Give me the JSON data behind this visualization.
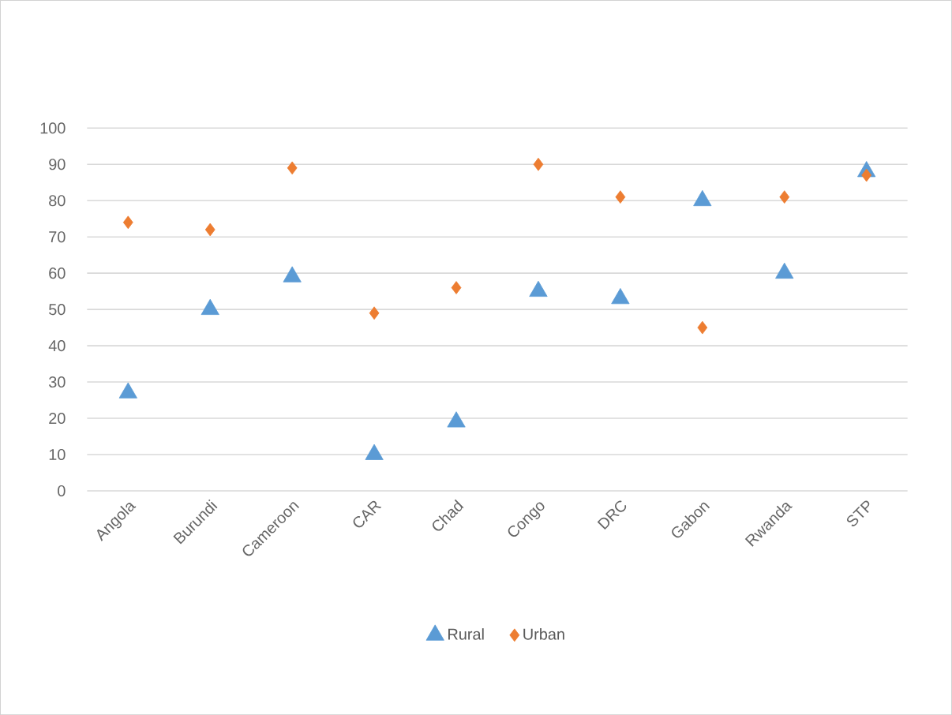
{
  "chart_data": {
    "type": "scatter",
    "categories": [
      "Angola",
      "Burundi",
      "Cameroon",
      "CAR",
      "Chad",
      "Congo",
      "DRC",
      "Gabon",
      "Rwanda",
      "STP"
    ],
    "series": [
      {
        "name": "Rural",
        "color": "#5b9bd5",
        "marker": "triangle",
        "values": [
          27,
          50,
          59,
          10,
          19,
          55,
          53,
          80,
          60,
          88
        ]
      },
      {
        "name": "Urban",
        "color": "#ed7d31",
        "marker": "diamond",
        "values": [
          74,
          72,
          89,
          49,
          56,
          90,
          81,
          45,
          81,
          87
        ]
      }
    ],
    "ylim": [
      0,
      100
    ],
    "yticks": [
      0,
      10,
      20,
      30,
      40,
      50,
      60,
      70,
      80,
      90,
      100
    ],
    "grid": "y",
    "legend": "bottom"
  }
}
